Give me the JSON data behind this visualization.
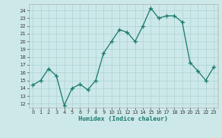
{
  "x": [
    0,
    1,
    2,
    3,
    4,
    5,
    6,
    7,
    8,
    9,
    10,
    11,
    12,
    13,
    14,
    15,
    16,
    17,
    18,
    19,
    20,
    21,
    22,
    23
  ],
  "y": [
    14.4,
    15.0,
    16.5,
    15.6,
    11.8,
    14.0,
    14.5,
    13.8,
    15.0,
    18.5,
    20.0,
    21.5,
    21.2,
    20.0,
    22.0,
    24.3,
    23.0,
    23.3,
    23.3,
    22.5,
    17.3,
    16.2,
    15.0,
    16.7
  ],
  "line_color": "#1a7a6e",
  "marker": "+",
  "markersize": 4,
  "markeredgewidth": 1.0,
  "linewidth": 1.0,
  "xlabel": "Humidex (Indice chaleur)",
  "ylim": [
    11.5,
    24.8
  ],
  "xlim": [
    -0.5,
    23.5
  ],
  "yticks": [
    12,
    13,
    14,
    15,
    16,
    17,
    18,
    19,
    20,
    21,
    22,
    23,
    24
  ],
  "xticks": [
    0,
    1,
    2,
    3,
    4,
    5,
    6,
    7,
    8,
    9,
    10,
    11,
    12,
    13,
    14,
    15,
    16,
    17,
    18,
    19,
    20,
    21,
    22,
    23
  ],
  "bg_color": "#cde8e8",
  "grid_color": "#b0d4d4",
  "tick_fontsize": 5.0,
  "xlabel_fontsize": 6.5
}
